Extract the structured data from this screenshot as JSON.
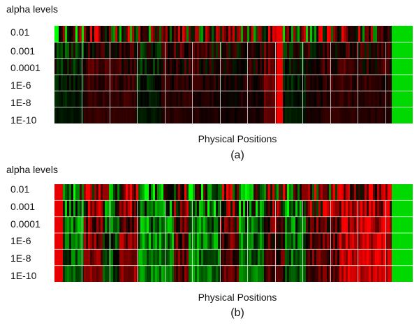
{
  "chart_data": [
    {
      "type": "heatmap",
      "panel_label": "(a)",
      "ylabel": "alpha levels",
      "xlabel": "Physical Positions",
      "row_labels": [
        "0.01",
        "0.001",
        "0.0001",
        "1E-6",
        "1E-8",
        "1E-10"
      ],
      "color_scale": {
        "negative": "#00ff00",
        "zero": "#000000",
        "positive": "#ff0000"
      },
      "blocks": [
        {
          "start": 0.0,
          "end": 0.079,
          "value": -0.1
        },
        {
          "start": 0.079,
          "end": 0.225,
          "value": 0.2
        },
        {
          "start": 0.225,
          "end": 0.295,
          "value": -0.08
        },
        {
          "start": 0.295,
          "end": 0.4,
          "value": 0.15
        },
        {
          "start": 0.4,
          "end": 0.46,
          "value": 0.1
        },
        {
          "start": 0.46,
          "end": 0.51,
          "value": 0.05
        },
        {
          "start": 0.51,
          "end": 0.58,
          "value": 0.1
        },
        {
          "start": 0.58,
          "end": 0.615,
          "value": 0.38
        },
        {
          "start": 0.615,
          "end": 0.635,
          "value": 0.95
        },
        {
          "start": 0.635,
          "end": 0.7,
          "value": -0.1
        },
        {
          "start": 0.7,
          "end": 0.745,
          "value": 0.1
        },
        {
          "start": 0.745,
          "end": 0.84,
          "value": 0.18
        },
        {
          "start": 0.84,
          "end": 0.94,
          "value": 0.14
        },
        {
          "start": 0.94,
          "end": 1.0,
          "value": -0.85
        }
      ],
      "row_noise": [
        0.95,
        0.35,
        0.25,
        0.15,
        0.1,
        0.05
      ]
    },
    {
      "type": "heatmap",
      "panel_label": "(b)",
      "ylabel": "alpha levels",
      "xlabel": "Physical Positions",
      "row_labels": [
        "0.01",
        "0.001",
        "0.0001",
        "1E-6",
        "1E-8",
        "1E-10"
      ],
      "color_scale": {
        "negative": "#00ff00",
        "zero": "#000000",
        "positive": "#ff0000"
      },
      "blocks": [
        {
          "start": 0.0,
          "end": 0.02,
          "value": 0.9
        },
        {
          "start": 0.02,
          "end": 0.08,
          "value": -0.35
        },
        {
          "start": 0.08,
          "end": 0.13,
          "value": 0.45
        },
        {
          "start": 0.13,
          "end": 0.18,
          "value": -0.25
        },
        {
          "start": 0.18,
          "end": 0.23,
          "value": 0.5
        },
        {
          "start": 0.23,
          "end": 0.33,
          "value": -0.5
        },
        {
          "start": 0.33,
          "end": 0.37,
          "value": 0.35
        },
        {
          "start": 0.37,
          "end": 0.46,
          "value": -0.45
        },
        {
          "start": 0.46,
          "end": 0.51,
          "value": 0.3
        },
        {
          "start": 0.51,
          "end": 0.58,
          "value": -0.4
        },
        {
          "start": 0.58,
          "end": 0.64,
          "value": 0.25
        },
        {
          "start": 0.64,
          "end": 0.7,
          "value": -0.35
        },
        {
          "start": 0.7,
          "end": 0.79,
          "value": 0.35
        },
        {
          "start": 0.79,
          "end": 0.94,
          "value": 0.75
        },
        {
          "start": 0.94,
          "end": 1.0,
          "value": -0.85
        }
      ],
      "row_noise": [
        0.9,
        0.65,
        0.45,
        0.35,
        0.3,
        0.25
      ]
    }
  ]
}
